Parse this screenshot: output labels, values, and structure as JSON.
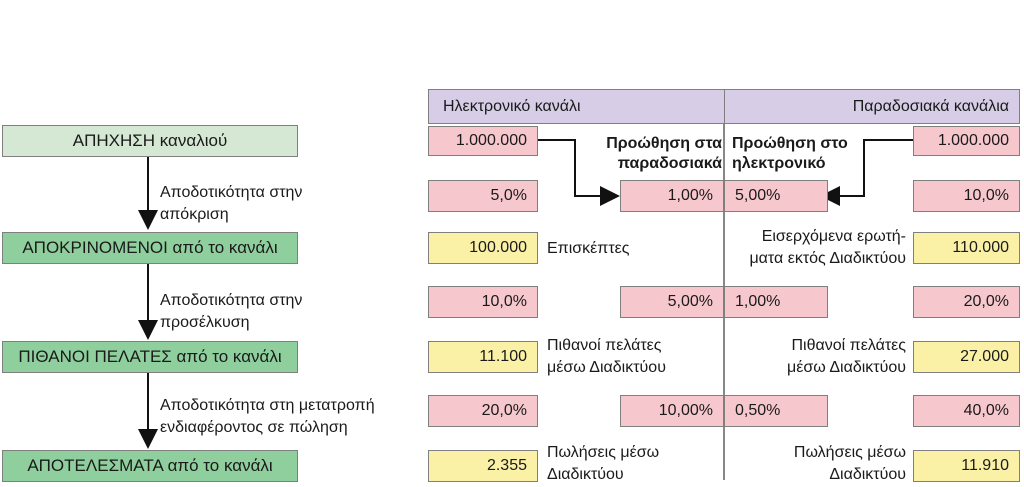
{
  "stages": {
    "reach": "ΑΠΗΧΗΣΗ καναλιού",
    "responders": "ΑΠΟΚΡΙΝΟΜΕΝΟΙ από το κανάλι",
    "prospects": "ΠΙΘΑΝΟΙ ΠΕΛΑΤΕΣ από το κανάλι",
    "results": "ΑΠΟΤΕΛΕΣΜΑΤΑ από το κανάλι"
  },
  "rates": {
    "response": [
      "Αποδοτικότητα στην",
      "απόκριση"
    ],
    "attraction": [
      "Αποδοτικότητα στην",
      "προσέλκυση"
    ],
    "conversion": [
      "Αποδοτικότητα στη μετατροπή",
      "ενδιαφέροντος σε πώληση"
    ]
  },
  "headers": {
    "online": "Ηλεκτρονικό κανάλι",
    "traditional": "Παραδοσιακά κανάλια"
  },
  "promo": {
    "to_traditional": [
      "Προώθηση στα",
      "παραδοσιακά"
    ],
    "to_online": [
      "Προώθηση στο",
      "ηλεκτρονικό"
    ]
  },
  "online": {
    "reach": "1.000.000",
    "response_rate": "5,0%",
    "responders": "100.000",
    "responders_label": "Επισκέπτες",
    "attraction_rate": "10,0%",
    "prospects": "11.100",
    "prospects_label": [
      "Πιθανοί πελάτες",
      "μέσω Διαδικτύου"
    ],
    "conversion_rate": "20,0%",
    "results": "2.355",
    "results_label": [
      "Πωλήσεις μέσω",
      "Διαδικτύου"
    ]
  },
  "cross": {
    "to_traditional_response": "1,00%",
    "to_traditional_attraction": "5,00%",
    "to_traditional_conversion": "10,00%",
    "to_online_response": "5,00%",
    "to_online_attraction": "1,00%",
    "to_online_conversion": "0,50%"
  },
  "traditional": {
    "reach": "1.000.000",
    "response_rate": "10,0%",
    "responders": "110.000",
    "responders_label": [
      "Εισερχόμενα ερωτή-",
      "ματα εκτός Διαδικτύου"
    ],
    "attraction_rate": "20,0%",
    "prospects": "27.000",
    "prospects_label": [
      "Πιθανοί πελάτες",
      "μέσω Διαδικτύου"
    ],
    "conversion_rate": "40,0%",
    "results": "11.910",
    "results_label": [
      "Πωλήσεις μέσω",
      "Διαδικτύου"
    ]
  },
  "colors": {
    "stage_light": "#d5e8d4",
    "stage_dark": "#8fcf9e",
    "header": "#d7cde6",
    "pink": "#f6c7cc",
    "yellow": "#faf0a6"
  }
}
